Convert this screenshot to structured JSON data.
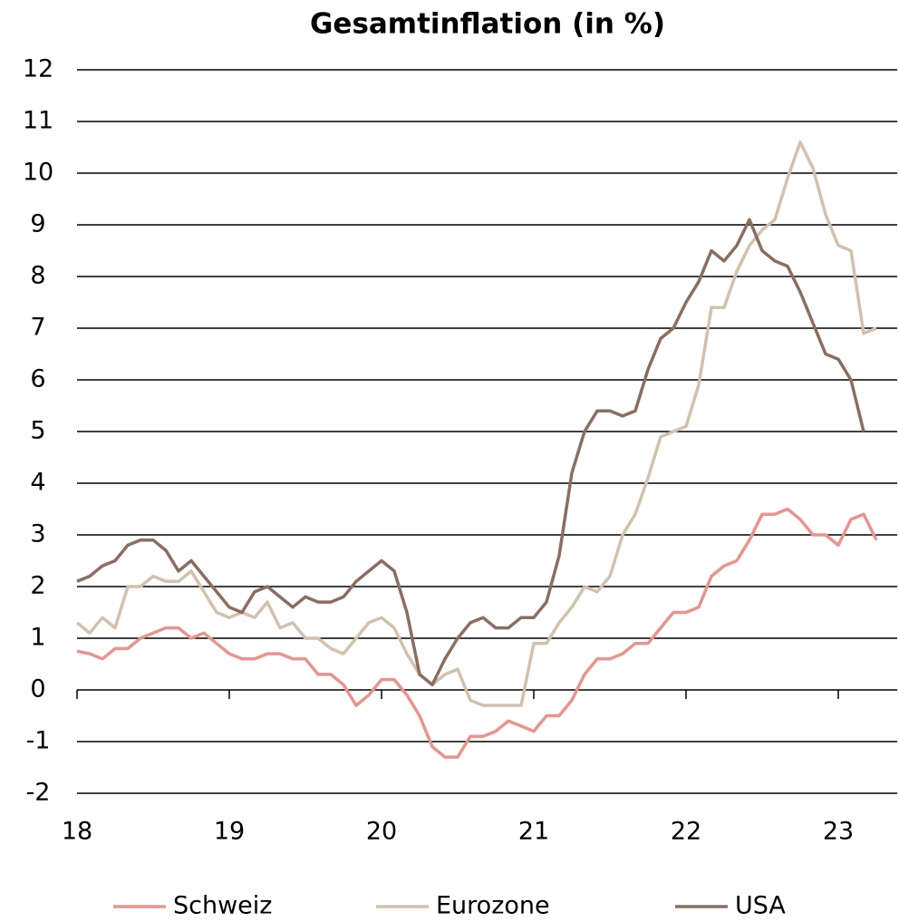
{
  "chart_data": {
    "type": "line",
    "title": "Gesamtinflation (in %)",
    "categories": [
      "18",
      null,
      null,
      null,
      null,
      null,
      null,
      null,
      null,
      null,
      null,
      null,
      "19",
      null,
      null,
      null,
      null,
      null,
      null,
      null,
      null,
      null,
      null,
      null,
      "20",
      null,
      null,
      null,
      null,
      null,
      null,
      null,
      null,
      null,
      null,
      null,
      "21",
      null,
      null,
      null,
      null,
      null,
      null,
      null,
      null,
      null,
      null,
      null,
      "22",
      null,
      null,
      null,
      null,
      null,
      null,
      null,
      null,
      null,
      null,
      null,
      "23",
      null,
      null,
      null
    ],
    "series": [
      {
        "name": "Schweiz",
        "color": "#e8948f",
        "values": [
          0.75,
          0.7,
          0.6,
          0.8,
          0.8,
          1.0,
          1.1,
          1.2,
          1.2,
          1.0,
          1.1,
          0.9,
          0.7,
          0.6,
          0.6,
          0.7,
          0.7,
          0.6,
          0.6,
          0.3,
          0.3,
          0.1,
          -0.3,
          -0.1,
          0.2,
          0.2,
          -0.1,
          -0.5,
          -1.1,
          -1.3,
          -1.3,
          -0.9,
          -0.9,
          -0.8,
          -0.6,
          -0.7,
          -0.8,
          -0.5,
          -0.5,
          -0.2,
          0.3,
          0.6,
          0.6,
          0.7,
          0.9,
          0.9,
          1.2,
          1.5,
          1.5,
          1.6,
          2.2,
          2.4,
          2.5,
          2.9,
          3.4,
          3.4,
          3.5,
          3.3,
          3.0,
          3.0,
          2.8,
          3.3,
          3.4,
          2.9
        ]
      },
      {
        "name": "Eurozone",
        "color": "#d2c1ad",
        "values": [
          1.3,
          1.1,
          1.4,
          1.2,
          2.0,
          2.0,
          2.2,
          2.1,
          2.1,
          2.3,
          1.9,
          1.5,
          1.4,
          1.5,
          1.4,
          1.7,
          1.2,
          1.3,
          1.0,
          1.0,
          0.8,
          0.7,
          1.0,
          1.3,
          1.4,
          1.2,
          0.7,
          0.3,
          0.1,
          0.3,
          0.4,
          -0.2,
          -0.3,
          -0.3,
          -0.3,
          -0.3,
          0.9,
          0.9,
          1.3,
          1.6,
          2.0,
          1.9,
          2.2,
          3.0,
          3.4,
          4.1,
          4.9,
          5.0,
          5.1,
          5.9,
          7.4,
          7.4,
          8.1,
          8.6,
          8.9,
          9.1,
          9.9,
          10.6,
          10.1,
          9.2,
          8.6,
          8.5,
          6.9,
          7.0
        ]
      },
      {
        "name": "USA",
        "color": "#8a6e60",
        "values": [
          2.1,
          2.2,
          2.4,
          2.5,
          2.8,
          2.9,
          2.9,
          2.7,
          2.3,
          2.5,
          2.2,
          1.9,
          1.6,
          1.5,
          1.9,
          2.0,
          1.8,
          1.6,
          1.8,
          1.7,
          1.7,
          1.8,
          2.1,
          2.3,
          2.5,
          2.3,
          1.5,
          0.3,
          0.1,
          0.6,
          1.0,
          1.3,
          1.4,
          1.2,
          1.2,
          1.4,
          1.4,
          1.7,
          2.6,
          4.2,
          5.0,
          5.4,
          5.4,
          5.3,
          5.4,
          6.2,
          6.8,
          7.0,
          7.5,
          7.9,
          8.5,
          8.3,
          8.6,
          9.1,
          8.5,
          8.3,
          8.2,
          7.7,
          7.1,
          6.5,
          6.4,
          6.0,
          5.0,
          null
        ]
      }
    ],
    "ylim": [
      -2,
      12
    ],
    "yticks": [
      -2,
      -1,
      0,
      1,
      2,
      3,
      4,
      5,
      6,
      7,
      8,
      9,
      10,
      11,
      12
    ],
    "grid": true,
    "legend": "bottom"
  }
}
